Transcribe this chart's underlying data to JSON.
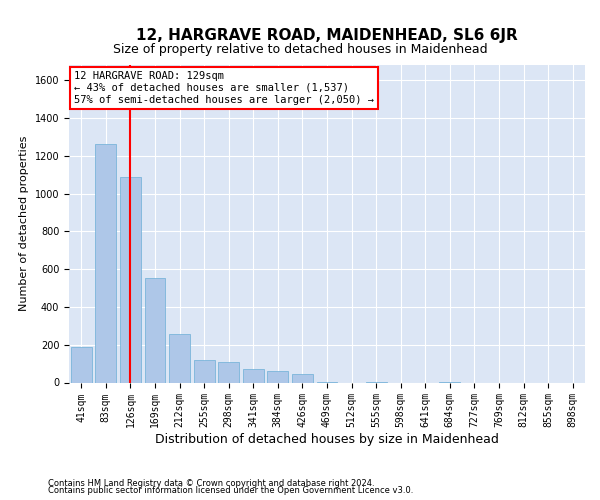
{
  "title": "12, HARGRAVE ROAD, MAIDENHEAD, SL6 6JR",
  "subtitle": "Size of property relative to detached houses in Maidenhead",
  "xlabel": "Distribution of detached houses by size in Maidenhead",
  "ylabel": "Number of detached properties",
  "footer1": "Contains HM Land Registry data © Crown copyright and database right 2024.",
  "footer2": "Contains public sector information licensed under the Open Government Licence v3.0.",
  "bin_labels": [
    "41sqm",
    "83sqm",
    "126sqm",
    "169sqm",
    "212sqm",
    "255sqm",
    "298sqm",
    "341sqm",
    "384sqm",
    "426sqm",
    "469sqm",
    "512sqm",
    "555sqm",
    "598sqm",
    "641sqm",
    "684sqm",
    "727sqm",
    "769sqm",
    "812sqm",
    "855sqm",
    "898sqm"
  ],
  "bar_heights": [
    190,
    1260,
    1090,
    555,
    255,
    120,
    110,
    70,
    60,
    45,
    5,
    0,
    5,
    0,
    0,
    5,
    0,
    0,
    0,
    0,
    0
  ],
  "bar_color": "#aec7e8",
  "bar_edgecolor": "#6baed6",
  "red_line_x": 2.0,
  "ann_title": "12 HARGRAVE ROAD: 129sqm",
  "ann_line1": "← 43% of detached houses are smaller (1,537)",
  "ann_line2": "57% of semi-detached houses are larger (2,050) →",
  "ylim": [
    0,
    1680
  ],
  "yticks": [
    0,
    200,
    400,
    600,
    800,
    1000,
    1200,
    1400,
    1600
  ],
  "background_color": "#dce6f5",
  "grid_color": "white",
  "title_fontsize": 11,
  "subtitle_fontsize": 9,
  "xlabel_fontsize": 9,
  "ylabel_fontsize": 8,
  "tick_fontsize": 7,
  "footer_fontsize": 6
}
